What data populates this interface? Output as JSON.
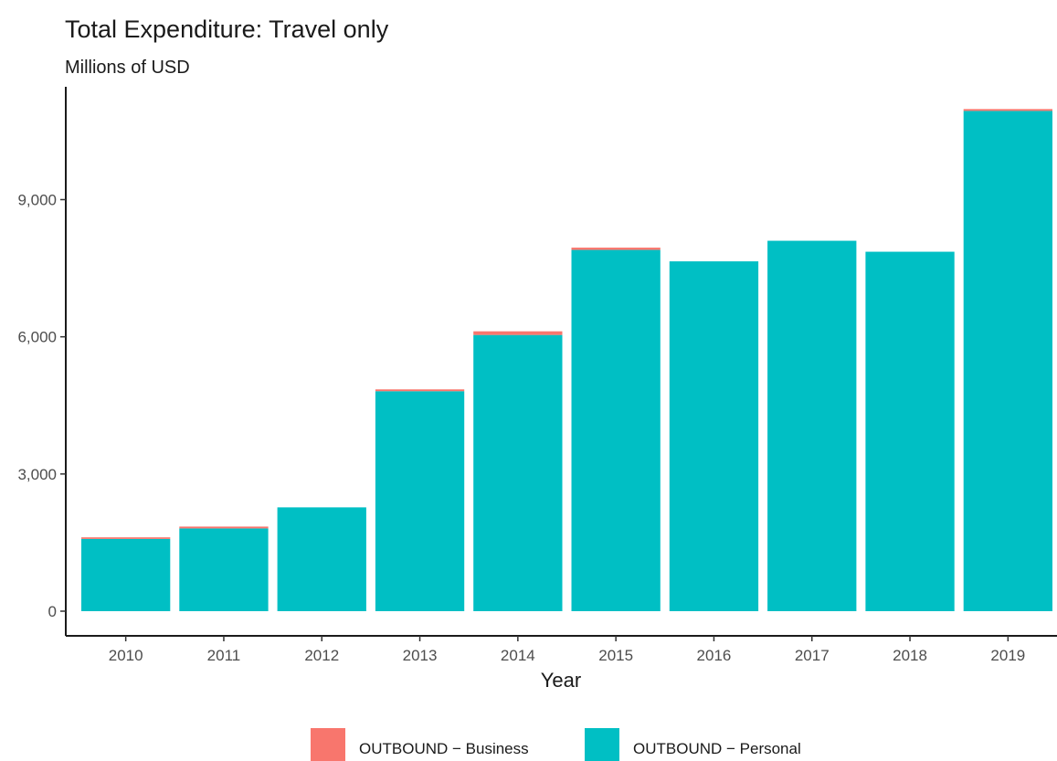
{
  "chart_data": {
    "type": "bar",
    "stacked": true,
    "title": "Total Expenditure: Travel only",
    "subtitle": "Millions of USD",
    "xlabel": "Year",
    "ylabel": "",
    "categories": [
      "2010",
      "2011",
      "2012",
      "2013",
      "2014",
      "2015",
      "2016",
      "2017",
      "2018",
      "2019"
    ],
    "series": [
      {
        "name": "OUTBOUND - Personal",
        "color": "#00BFC4",
        "values": [
          1580,
          1810,
          2270,
          4810,
          6040,
          7900,
          7650,
          8100,
          7860,
          10940
        ]
      },
      {
        "name": "OUTBOUND - Business",
        "color": "#F8766D",
        "values": [
          35,
          40,
          0,
          40,
          80,
          50,
          0,
          0,
          0,
          40
        ]
      }
    ],
    "yticks": [
      0,
      3000,
      6000,
      9000
    ],
    "ytick_labels": [
      "0",
      "3,000",
      "6,000",
      "9,000"
    ],
    "ylim": [
      -500,
      11600
    ],
    "grid": false,
    "legend": {
      "position": "bottom",
      "entries": [
        {
          "label": "OUTBOUND − Business",
          "color": "#F8766D"
        },
        {
          "label": "OUTBOUND − Personal",
          "color": "#00BFC4"
        }
      ]
    }
  }
}
